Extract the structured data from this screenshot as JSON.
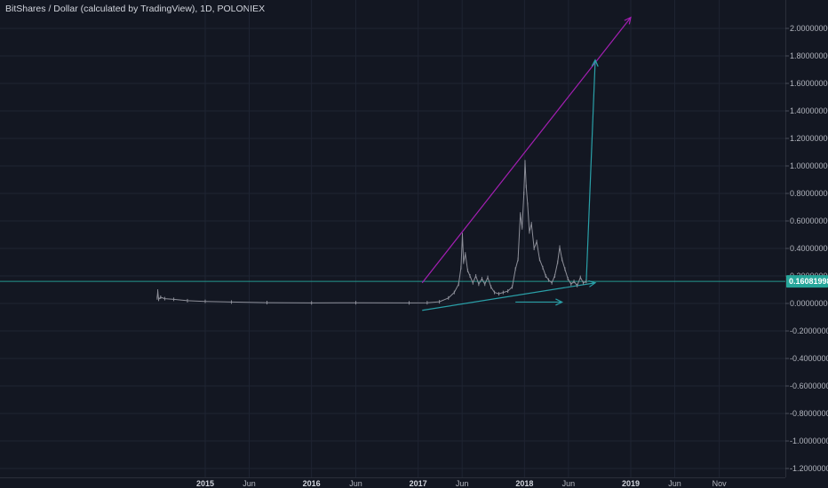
{
  "header": {
    "title": "BitShares / Dollar (calculated by TradingView), 1D, POLONIEX"
  },
  "colors": {
    "background": "#131722",
    "grid": "#1f2432",
    "price_line": "#8d8f99",
    "trend_magenta": "#a41fb3",
    "trend_teal": "#2aa0a8",
    "last_price": "#26a69a"
  },
  "chart_data": {
    "type": "line",
    "title": "BitShares / Dollar (calculated by TradingView), 1D, POLONIEX",
    "xlabel": "",
    "ylabel": "",
    "ylim": [
      -1.25,
      2.1
    ],
    "grid": true,
    "x_ticks": [
      {
        "label": "2015",
        "date": "2015-01-01",
        "bold": true
      },
      {
        "label": "Jun",
        "date": "2015-06-01",
        "bold": false
      },
      {
        "label": "2016",
        "date": "2016-01-01",
        "bold": true
      },
      {
        "label": "Jun",
        "date": "2016-06-01",
        "bold": false
      },
      {
        "label": "2017",
        "date": "2017-01-01",
        "bold": true
      },
      {
        "label": "Jun",
        "date": "2017-06-01",
        "bold": false
      },
      {
        "label": "2018",
        "date": "2018-01-01",
        "bold": true
      },
      {
        "label": "Jun",
        "date": "2018-06-01",
        "bold": false
      },
      {
        "label": "2019",
        "date": "2019-01-01",
        "bold": true
      },
      {
        "label": "Jun",
        "date": "2019-06-01",
        "bold": false
      },
      {
        "label": "Nov",
        "date": "2019-11-01",
        "bold": false
      }
    ],
    "y_ticks": [
      {
        "value": 2.0,
        "label": "2.00000000"
      },
      {
        "value": 1.8,
        "label": "1.80000000"
      },
      {
        "value": 1.6,
        "label": "1.60000000"
      },
      {
        "value": 1.4,
        "label": "1.40000000"
      },
      {
        "value": 1.2,
        "label": "1.20000000"
      },
      {
        "value": 1.0,
        "label": "1.00000000"
      },
      {
        "value": 0.8,
        "label": "0.80000000"
      },
      {
        "value": 0.6,
        "label": "0.60000000"
      },
      {
        "value": 0.4,
        "label": "0.40000000"
      },
      {
        "value": 0.2,
        "label": "0.20000000"
      },
      {
        "value": 0.0,
        "label": "0.00000000"
      },
      {
        "value": -0.2,
        "label": "-0.20000000"
      },
      {
        "value": -0.4,
        "label": "-0.40000000"
      },
      {
        "value": -0.6,
        "label": "-0.60000000"
      },
      {
        "value": -0.8,
        "label": "-0.80000000"
      },
      {
        "value": -1.0,
        "label": "-1.00000000"
      },
      {
        "value": -1.2,
        "label": "-1.20000000"
      }
    ],
    "last_price": {
      "value": 0.16081998,
      "label": "0.16081998"
    },
    "series": [
      {
        "points": [
          {
            "date": "2014-07-20",
            "value": 0.04
          },
          {
            "date": "2014-07-22",
            "value": 0.09
          },
          {
            "date": "2014-07-25",
            "value": 0.03
          },
          {
            "date": "2014-08-01",
            "value": 0.045
          },
          {
            "date": "2014-08-15",
            "value": 0.035
          },
          {
            "date": "2014-09-15",
            "value": 0.03
          },
          {
            "date": "2014-11-01",
            "value": 0.02
          },
          {
            "date": "2015-01-01",
            "value": 0.015
          },
          {
            "date": "2015-04-01",
            "value": 0.01
          },
          {
            "date": "2015-08-01",
            "value": 0.006
          },
          {
            "date": "2016-01-01",
            "value": 0.004
          },
          {
            "date": "2016-06-01",
            "value": 0.005
          },
          {
            "date": "2016-12-01",
            "value": 0.004
          },
          {
            "date": "2017-02-01",
            "value": 0.005
          },
          {
            "date": "2017-03-15",
            "value": 0.012
          },
          {
            "date": "2017-04-15",
            "value": 0.04
          },
          {
            "date": "2017-05-05",
            "value": 0.08
          },
          {
            "date": "2017-05-20",
            "value": 0.14
          },
          {
            "date": "2017-05-28",
            "value": 0.26
          },
          {
            "date": "2017-06-02",
            "value": 0.5
          },
          {
            "date": "2017-06-06",
            "value": 0.3
          },
          {
            "date": "2017-06-12",
            "value": 0.36
          },
          {
            "date": "2017-06-20",
            "value": 0.24
          },
          {
            "date": "2017-06-28",
            "value": 0.2
          },
          {
            "date": "2017-07-08",
            "value": 0.15
          },
          {
            "date": "2017-07-18",
            "value": 0.2
          },
          {
            "date": "2017-07-28",
            "value": 0.14
          },
          {
            "date": "2017-08-08",
            "value": 0.18
          },
          {
            "date": "2017-08-18",
            "value": 0.14
          },
          {
            "date": "2017-08-28",
            "value": 0.19
          },
          {
            "date": "2017-09-08",
            "value": 0.12
          },
          {
            "date": "2017-09-20",
            "value": 0.08
          },
          {
            "date": "2017-10-05",
            "value": 0.07
          },
          {
            "date": "2017-10-20",
            "value": 0.08
          },
          {
            "date": "2017-11-05",
            "value": 0.09
          },
          {
            "date": "2017-11-20",
            "value": 0.12
          },
          {
            "date": "2017-12-01",
            "value": 0.25
          },
          {
            "date": "2017-12-10",
            "value": 0.32
          },
          {
            "date": "2017-12-18",
            "value": 0.65
          },
          {
            "date": "2017-12-24",
            "value": 0.55
          },
          {
            "date": "2017-12-30",
            "value": 0.8
          },
          {
            "date": "2018-01-03",
            "value": 1.03
          },
          {
            "date": "2018-01-07",
            "value": 0.85
          },
          {
            "date": "2018-01-12",
            "value": 0.72
          },
          {
            "date": "2018-01-18",
            "value": 0.52
          },
          {
            "date": "2018-01-25",
            "value": 0.58
          },
          {
            "date": "2018-02-03",
            "value": 0.4
          },
          {
            "date": "2018-02-12",
            "value": 0.45
          },
          {
            "date": "2018-02-22",
            "value": 0.32
          },
          {
            "date": "2018-03-05",
            "value": 0.26
          },
          {
            "date": "2018-03-15",
            "value": 0.2
          },
          {
            "date": "2018-03-25",
            "value": 0.17
          },
          {
            "date": "2018-04-05",
            "value": 0.15
          },
          {
            "date": "2018-04-15",
            "value": 0.2
          },
          {
            "date": "2018-04-25",
            "value": 0.3
          },
          {
            "date": "2018-05-02",
            "value": 0.41
          },
          {
            "date": "2018-05-10",
            "value": 0.32
          },
          {
            "date": "2018-05-20",
            "value": 0.25
          },
          {
            "date": "2018-05-30",
            "value": 0.18
          },
          {
            "date": "2018-06-10",
            "value": 0.14
          },
          {
            "date": "2018-06-20",
            "value": 0.16
          },
          {
            "date": "2018-07-01",
            "value": 0.13
          },
          {
            "date": "2018-07-12",
            "value": 0.19
          },
          {
            "date": "2018-07-22",
            "value": 0.15
          },
          {
            "date": "2018-08-01",
            "value": 0.16
          }
        ]
      }
    ],
    "annotations": {
      "magenta_trendline": {
        "start": {
          "date": "2017-01-15",
          "value": 0.15
        },
        "end": {
          "date": "2019-01-01",
          "value": 2.08
        }
      },
      "teal_support_arrow": {
        "start": {
          "date": "2017-01-15",
          "value": -0.05
        },
        "end": {
          "date": "2018-09-01",
          "value": 0.15
        }
      },
      "teal_horizontal_arrow": {
        "start": {
          "date": "2017-12-01",
          "value": 0.01
        },
        "end": {
          "date": "2018-05-10",
          "value": 0.01
        }
      },
      "teal_vertical_arrow": {
        "start": {
          "date": "2018-08-01",
          "value": 0.15
        },
        "end": {
          "date": "2018-09-01",
          "value": 1.77
        }
      }
    }
  }
}
